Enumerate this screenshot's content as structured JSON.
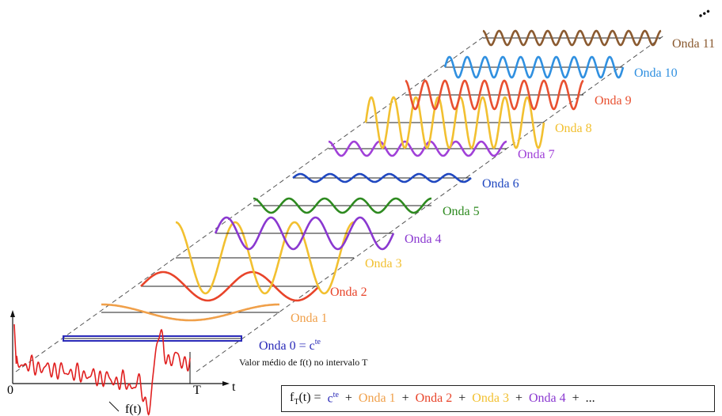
{
  "waves": [
    {
      "label": "Onda 0 = c",
      "sup": "te",
      "color": "#2a2ab8"
    },
    {
      "label": "Onda 1",
      "color": "#f0a04a"
    },
    {
      "label": "Onda 2",
      "color": "#e8442a"
    },
    {
      "label": "Onda 3",
      "color": "#f2c030"
    },
    {
      "label": "Onda 4",
      "color": "#8a38d0"
    },
    {
      "label": "Onda 5",
      "color": "#2e8a20"
    },
    {
      "label": "Onda 6",
      "color": "#2048c0"
    },
    {
      "label": "Onda 7",
      "color": "#a040d8"
    },
    {
      "label": "Onda 8",
      "color": "#f2c030"
    },
    {
      "label": "Onda 9",
      "color": "#e85030"
    },
    {
      "label": "Onda 10",
      "color": "#3090e0"
    },
    {
      "label": "Onda 11",
      "color": "#8a5a30"
    }
  ],
  "mean_note": "Valor médio de f(t) no intervalo T",
  "axis": {
    "origin": "0",
    "t": "t",
    "T": "T",
    "f": "f(t)"
  },
  "formula": {
    "lhs": "f",
    "lhs_sub": "T",
    "lhs_rest": "(t) =",
    "c": "c",
    "c_sup": "te",
    "plus": "+",
    "terms": [
      {
        "text": "Onda 1",
        "color": "#f0a04a"
      },
      {
        "text": "Onda 2",
        "color": "#e8442a"
      },
      {
        "text": "Onda 3",
        "color": "#f2c030"
      },
      {
        "text": "Onda 4",
        "color": "#8a38d0"
      }
    ],
    "ellipsis": "..."
  },
  "dots": "..."
}
